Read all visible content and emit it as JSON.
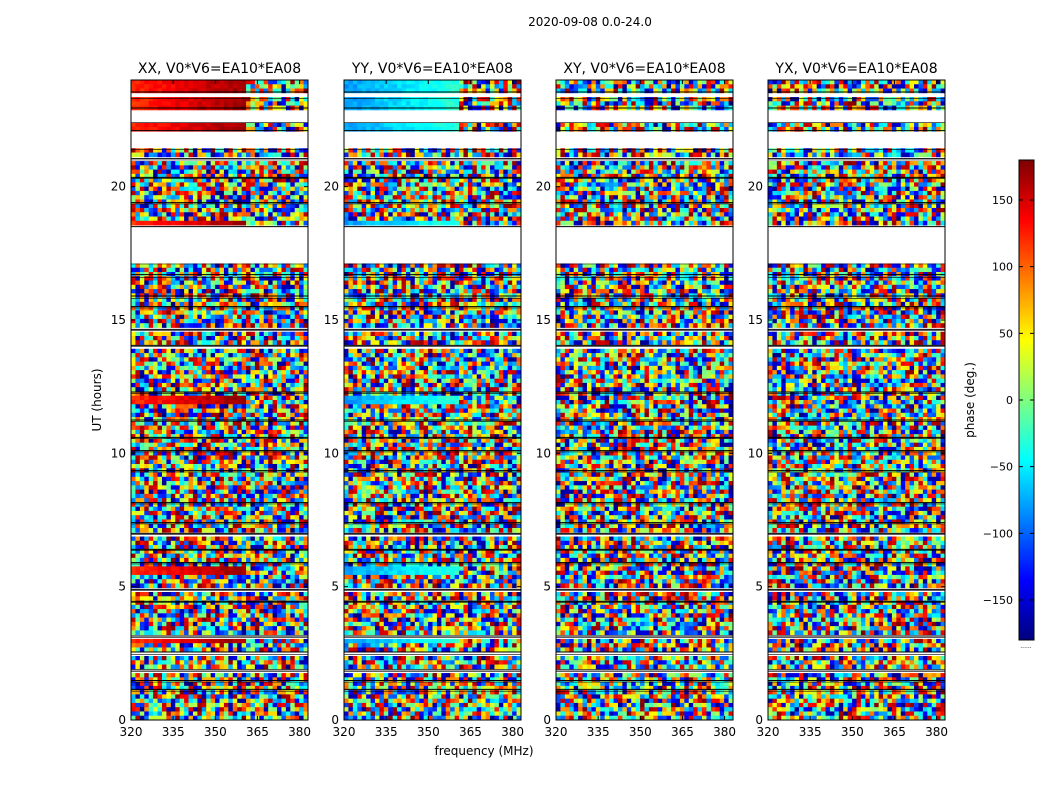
{
  "figure": {
    "suptitle": "2020-09-08 0.0-24.0",
    "xlabel": "frequency (MHz)",
    "ylabel": "UT (hours)",
    "colorbar_label": "phase (deg.)",
    "colorbar_footer": "......"
  },
  "chart_data": {
    "type": "heatmap",
    "x_range": [
      320,
      383
    ],
    "y_range": [
      0,
      24
    ],
    "x_ticks": [
      320,
      335,
      350,
      365,
      380
    ],
    "y_ticks": [
      0,
      5,
      10,
      15,
      20
    ],
    "colorbar": {
      "range": [
        -180,
        180
      ],
      "ticks": [
        150,
        100,
        50,
        0,
        -50,
        -100,
        -150
      ],
      "tick_labels": [
        "150",
        "100",
        "50",
        "0",
        "−50",
        "−100",
        "−150"
      ],
      "colormap": [
        "#00007f",
        "#0000ff",
        "#007fff",
        "#00ffff",
        "#7fff7f",
        "#ffff00",
        "#ff7f00",
        "#ff0000",
        "#7f0000"
      ]
    },
    "panels": [
      {
        "title": "XX, V0*V6=EA10*EA08",
        "polarization": "XX",
        "base_phase": 160
      },
      {
        "title": "YY, V0*V6=EA10*EA08",
        "polarization": "YY",
        "base_phase": -40
      },
      {
        "title": "XY, V0*V6=EA10*EA08",
        "polarization": "XY",
        "base_phase": null
      },
      {
        "title": "YX, V0*V6=EA10*EA08",
        "polarization": "YX",
        "base_phase": null
      }
    ],
    "data_gaps_hours": [
      [
        1.08,
        1.15
      ],
      [
        1.42,
        1.48
      ],
      [
        1.82,
        1.88
      ],
      [
        2.45,
        2.55
      ],
      [
        3.1,
        3.15
      ],
      [
        4.4,
        4.45
      ],
      [
        4.85,
        4.9
      ],
      [
        5.85,
        5.9
      ],
      [
        6.35,
        6.4
      ],
      [
        6.95,
        7.0
      ],
      [
        7.35,
        7.4
      ],
      [
        8.1,
        8.15
      ],
      [
        9.3,
        9.35
      ],
      [
        10.05,
        10.1
      ],
      [
        10.55,
        10.6
      ],
      [
        11.2,
        11.25
      ],
      [
        12.25,
        12.3
      ],
      [
        14.0,
        14.05
      ],
      [
        14.6,
        14.65
      ],
      [
        15.45,
        15.5
      ],
      [
        15.8,
        15.9
      ],
      [
        16.6,
        16.7
      ],
      [
        17.1,
        18.5
      ],
      [
        19.35,
        19.4
      ],
      [
        20.3,
        20.35
      ],
      [
        21.0,
        21.05
      ],
      [
        21.4,
        22.1
      ],
      [
        22.4,
        22.95
      ],
      [
        23.3,
        23.55
      ]
    ]
  }
}
